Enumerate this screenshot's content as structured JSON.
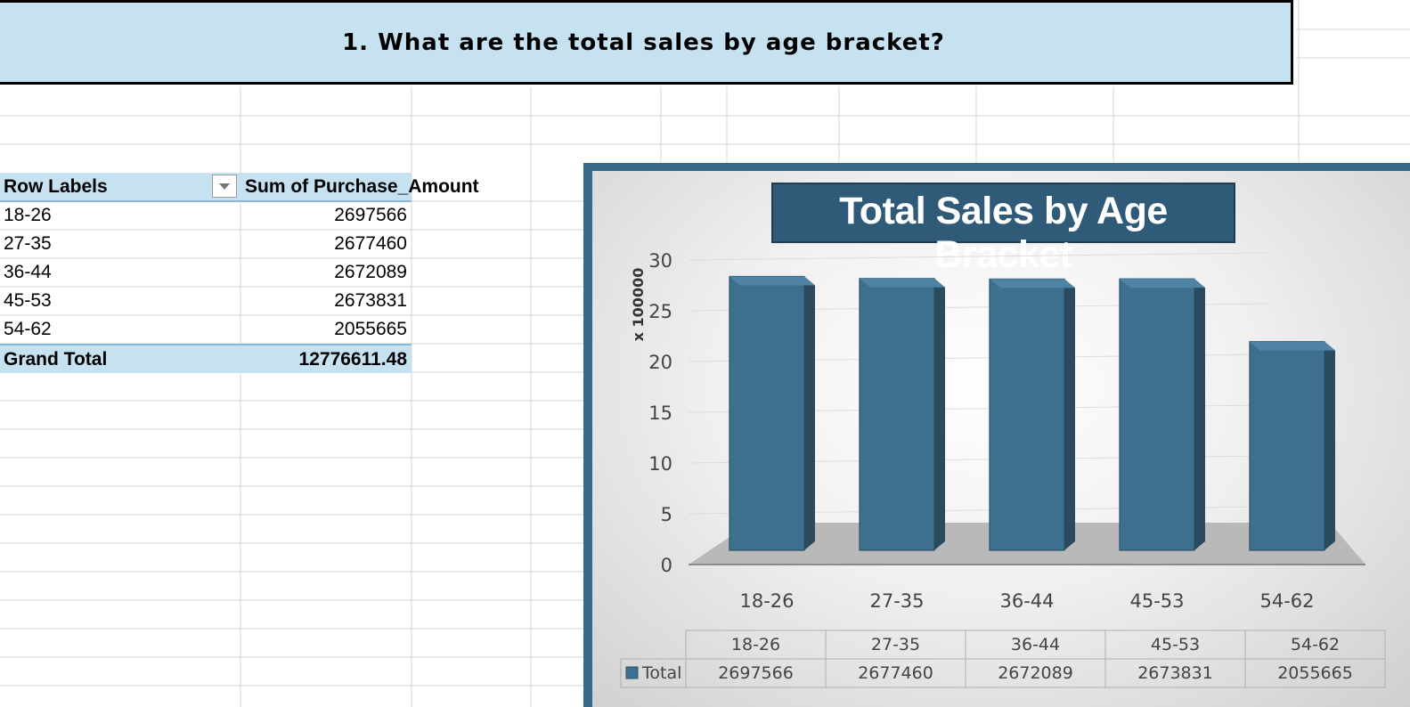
{
  "banner": {
    "title": "1. What are the total sales by age bracket?"
  },
  "pivot": {
    "header_row_labels": "Row Labels",
    "header_value": "Sum of Purchase_Amount",
    "rows": [
      {
        "label": "18-26",
        "value": "2697566"
      },
      {
        "label": "27-35",
        "value": "2677460"
      },
      {
        "label": "36-44",
        "value": "2672089"
      },
      {
        "label": "45-53",
        "value": "2673831"
      },
      {
        "label": "54-62",
        "value": "2055665"
      }
    ],
    "grand_total_label": "Grand Total",
    "grand_total_value": "12776611.48"
  },
  "chart_data": {
    "type": "bar",
    "title": "Total Sales by Age Bracket",
    "ylabel": "x 100000",
    "categories": [
      "18-26",
      "27-35",
      "36-44",
      "45-53",
      "54-62"
    ],
    "series": [
      {
        "name": "Total",
        "values": [
          2697566,
          2677460,
          2672089,
          2673831,
          2055665
        ]
      }
    ],
    "y_display_unit": 100000,
    "ylim": [
      0,
      30
    ],
    "y_ticks": [
      0,
      5,
      10,
      15,
      20,
      25,
      30
    ],
    "table_values": [
      "2697566",
      "2677460",
      "2672089",
      "2673831",
      "2055665"
    ],
    "legend": "data-table",
    "bar_color": "#3d6f8f",
    "grid": true
  },
  "colors": {
    "banner_bg": "#c6e2f1",
    "chart_border": "#356a88",
    "title_box": "#2f5b78"
  }
}
